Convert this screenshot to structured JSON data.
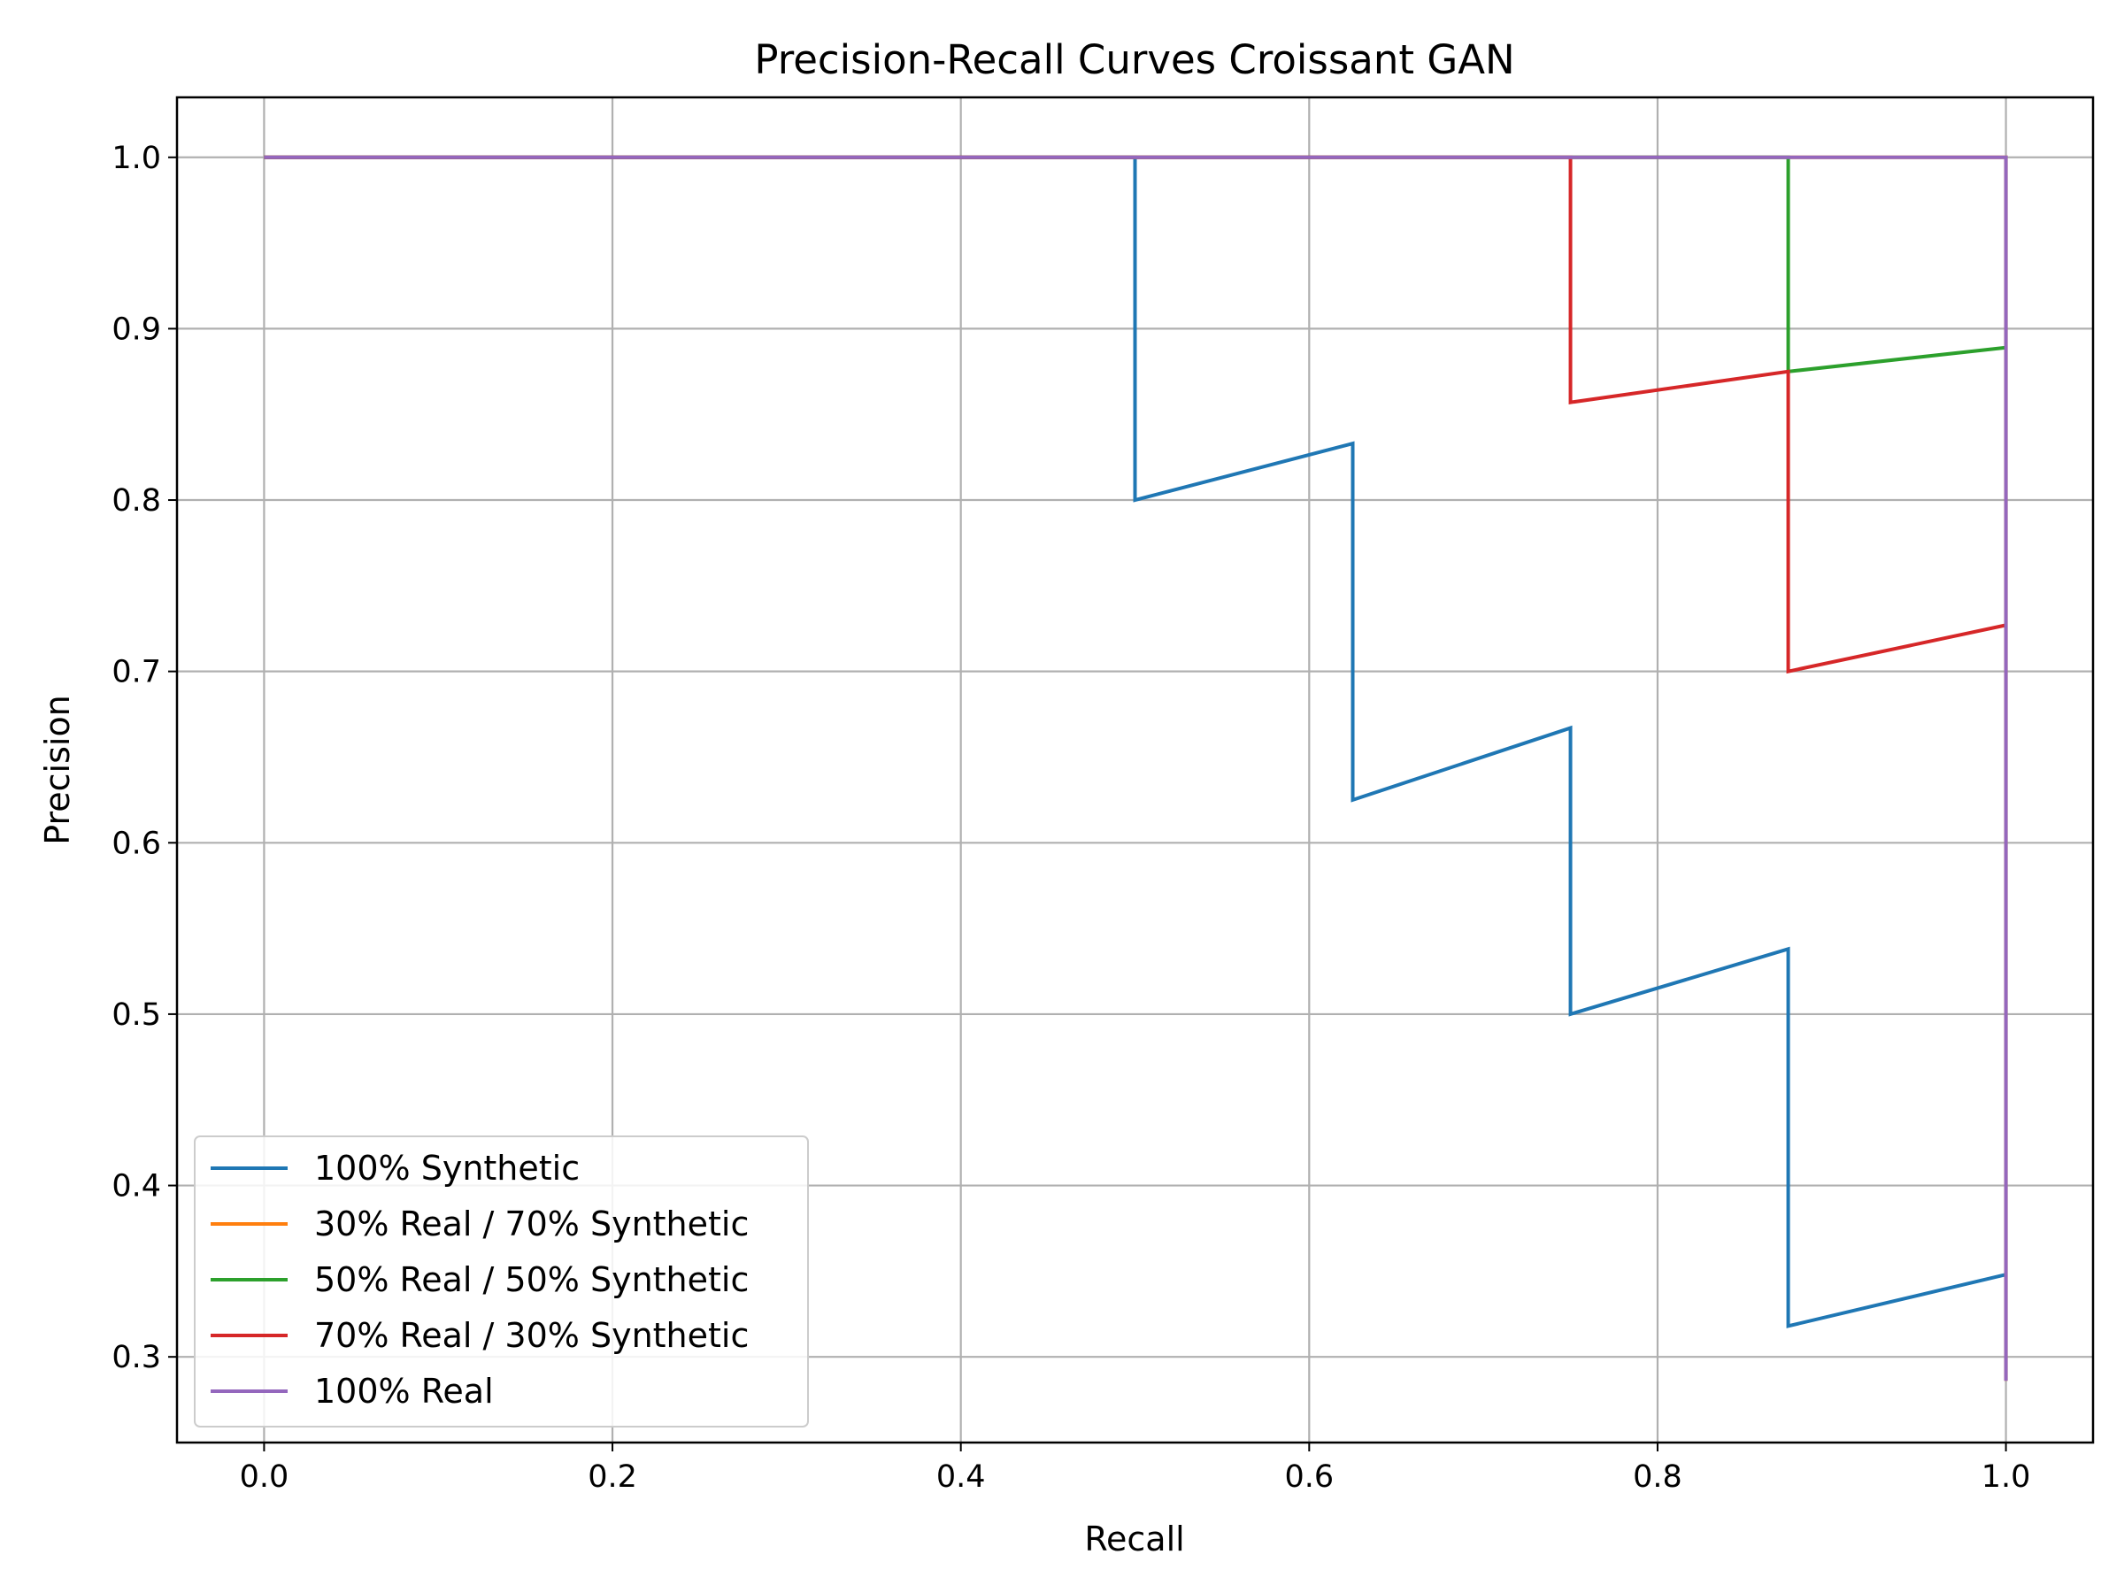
{
  "chart_data": {
    "type": "line",
    "title": "Precision-Recall Curves Croissant GAN",
    "xlabel": "Recall",
    "ylabel": "Precision",
    "xlim": [
      -0.05,
      1.05
    ],
    "ylim": [
      0.25,
      1.035
    ],
    "xticks": [
      0.0,
      0.2,
      0.4,
      0.6,
      0.8,
      1.0
    ],
    "xtick_labels": [
      "0.0",
      "0.2",
      "0.4",
      "0.6",
      "0.8",
      "1.0"
    ],
    "yticks": [
      0.3,
      0.4,
      0.5,
      0.6,
      0.7,
      0.8,
      0.9,
      1.0
    ],
    "ytick_labels": [
      "0.3",
      "0.4",
      "0.5",
      "0.6",
      "0.7",
      "0.8",
      "0.9",
      "1.0"
    ],
    "grid": true,
    "legend_position": "lower-left",
    "series": [
      {
        "name": "100% Synthetic",
        "color": "#1f77b4",
        "x": [
          0.0,
          0.5,
          0.5,
          0.625,
          0.625,
          0.75,
          0.75,
          0.875,
          0.875,
          1.0
        ],
        "y": [
          1.0,
          1.0,
          0.8,
          0.833,
          0.625,
          0.667,
          0.5,
          0.538,
          0.318,
          0.348
        ]
      },
      {
        "name": "30% Real / 70% Synthetic",
        "color": "#ff7f0e",
        "x": [
          0.0,
          1.0,
          1.0
        ],
        "y": [
          1.0,
          1.0,
          0.286
        ]
      },
      {
        "name": "50% Real / 50% Synthetic",
        "color": "#2ca02c",
        "x": [
          0.0,
          0.875,
          0.875,
          1.0
        ],
        "y": [
          1.0,
          1.0,
          0.875,
          0.889
        ]
      },
      {
        "name": "70% Real / 30% Synthetic",
        "color": "#d62728",
        "x": [
          0.0,
          0.75,
          0.75,
          0.875,
          0.875,
          1.0
        ],
        "y": [
          1.0,
          1.0,
          0.857,
          0.875,
          0.7,
          0.727
        ]
      },
      {
        "name": "100% Real",
        "color": "#9467bd",
        "x": [
          0.0,
          1.0,
          1.0
        ],
        "y": [
          1.0,
          1.0,
          0.286
        ]
      }
    ]
  }
}
